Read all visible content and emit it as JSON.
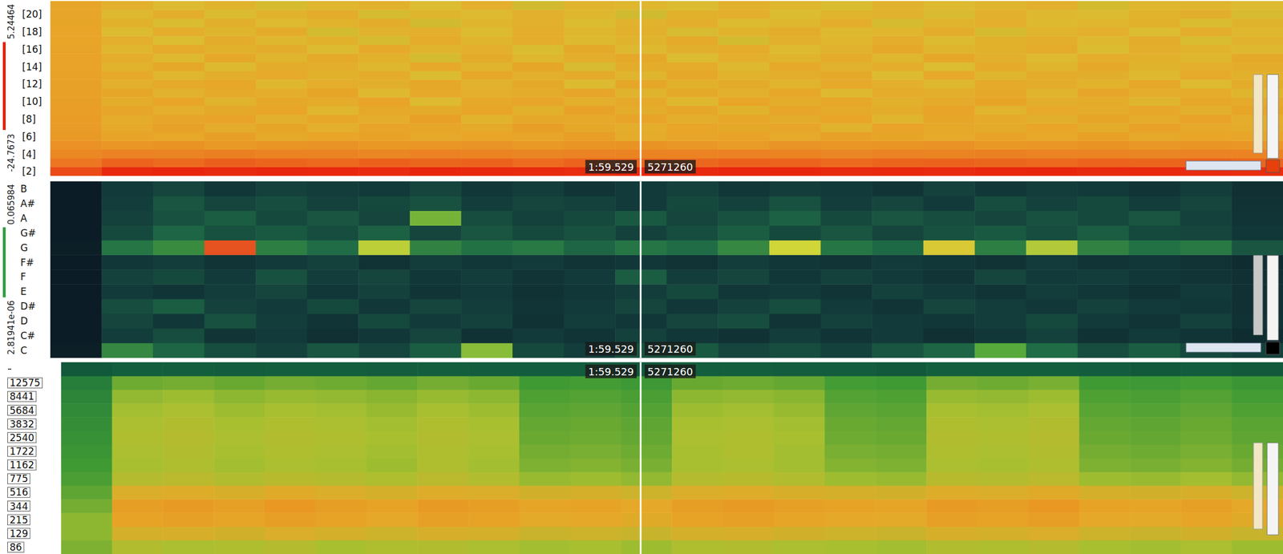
{
  "chart_data": [
    {
      "type": "heatmap",
      "y_categories": [
        "[2]",
        null,
        "[4]",
        null,
        "[6]",
        null,
        "[8]",
        null,
        "[10]",
        null,
        "[12]",
        null,
        "[14]",
        null,
        "[16]",
        null,
        "[18]",
        null,
        "[20]",
        null
      ],
      "color_range": [
        -24.7673,
        5.24464
      ],
      "color_ticks": [
        -24.7673,
        5.24464
      ],
      "annotations": [
        "1:59.529",
        "5271260"
      ],
      "tick_labels": "y",
      "cells": [
        [
          2.0,
          4.6,
          4.8,
          4.5,
          4.9,
          4.7,
          4.4,
          4.8,
          4.6,
          4.5,
          4.3,
          4.7,
          4.6,
          4.9,
          4.8,
          4.5,
          4.6,
          4.4,
          4.7,
          4.8,
          4.5,
          4.6,
          4.4,
          4.3
        ],
        [
          -1.5,
          0.2,
          -0.3,
          0.5,
          0.1,
          -0.2,
          0.4,
          0.0,
          0.3,
          -0.4,
          0.2,
          0.1,
          -0.1,
          0.4,
          0.2,
          -0.3,
          0.1,
          0.3,
          0.0,
          -0.2,
          0.2,
          0.1,
          0.3,
          0.0
        ],
        [
          -3.5,
          -2.8,
          -3.1,
          -2.6,
          -3.0,
          -2.9,
          -3.3,
          -2.7,
          -3.0,
          -3.2,
          -2.8,
          -3.1,
          -2.9,
          -2.7,
          -3.0,
          -3.3,
          -2.8,
          -3.1,
          -2.6,
          -3.0,
          -2.9,
          -3.2,
          -2.8,
          -3.0
        ],
        [
          -4.5,
          -5.2,
          -4.8,
          -5.6,
          -5.0,
          -4.7,
          -5.4,
          -5.1,
          -4.9,
          -5.5,
          -5.0,
          -4.8,
          -5.3,
          -5.7,
          -4.9,
          -5.2,
          -5.0,
          -4.6,
          -5.4,
          -5.1,
          -4.8,
          -5.3,
          -5.0,
          -5.2
        ],
        [
          -5.5,
          -6.8,
          -7.5,
          -6.2,
          -8.1,
          -7.0,
          -6.5,
          -7.8,
          -6.9,
          -7.3,
          -6.1,
          -8.4,
          -7.2,
          -6.6,
          -7.9,
          -6.4,
          -7.1,
          -8.0,
          -6.7,
          -7.4,
          -6.3,
          -7.7,
          -6.9,
          -7.2
        ],
        [
          -5.8,
          -7.9,
          -6.4,
          -8.8,
          -7.1,
          -9.5,
          -6.8,
          -7.6,
          -8.3,
          -6.2,
          -7.7,
          -9.0,
          -6.9,
          -8.1,
          -7.3,
          -10.2,
          -6.6,
          -7.8,
          -8.6,
          -7.0,
          -9.1,
          -6.5,
          -7.9,
          -8.4
        ],
        [
          -6.0,
          -8.5,
          -7.2,
          -6.6,
          -9.8,
          -7.4,
          -8.9,
          -6.3,
          -10.5,
          -7.7,
          -8.0,
          -6.8,
          -9.3,
          -7.5,
          -8.7,
          -6.9,
          -11.0,
          -7.6,
          -8.2,
          -9.6,
          -7.1,
          -8.4,
          -6.7,
          -9.0
        ],
        [
          -6.1,
          -7.3,
          -9.4,
          -8.1,
          -6.9,
          -11.2,
          -7.8,
          -8.6,
          -7.0,
          -9.9,
          -6.5,
          -8.8,
          -7.6,
          -10.4,
          -7.2,
          -8.3,
          -9.1,
          -6.8,
          -10.8,
          -7.9,
          -8.5,
          -7.4,
          -9.7,
          -7.1
        ],
        [
          -6.2,
          -9.1,
          -7.0,
          -10.6,
          -7.8,
          -8.4,
          -6.6,
          -12.3,
          -8.0,
          -7.3,
          -9.5,
          -7.9,
          -11.4,
          -6.9,
          -8.8,
          -7.5,
          -10.1,
          -8.2,
          -7.1,
          -9.3,
          -8.6,
          -10.9,
          -7.7,
          -8.3
        ],
        [
          -6.3,
          -7.6,
          -10.2,
          -8.3,
          -9.0,
          -7.1,
          -11.8,
          -7.9,
          -9.4,
          -8.7,
          -7.2,
          -10.6,
          -8.1,
          -9.8,
          -7.4,
          -12.0,
          -8.5,
          -9.2,
          -7.8,
          -10.7,
          -7.3,
          -9.0,
          -8.4,
          -11.1
        ],
        [
          -6.4,
          -9.7,
          -8.2,
          -7.4,
          -11.5,
          -8.9,
          -9.6,
          -7.7,
          -10.3,
          -8.1,
          -12.6,
          -7.6,
          -9.9,
          -8.6,
          -10.8,
          -7.9,
          -9.4,
          -11.7,
          -8.3,
          -9.1,
          -10.5,
          -7.8,
          -12.2,
          -8.7
        ],
        [
          -6.5,
          -8.0,
          -11.3,
          -9.2,
          -7.9,
          -10.1,
          -8.4,
          -12.9,
          -7.5,
          -9.8,
          -8.6,
          -11.0,
          -7.7,
          -10.4,
          -9.3,
          -8.1,
          -12.4,
          -7.9,
          -10.9,
          -8.8,
          -9.6,
          -11.8,
          -8.2,
          -10.0
        ],
        [
          -6.6,
          -10.4,
          -7.8,
          -12.1,
          -8.7,
          -9.3,
          -11.6,
          -8.0,
          -10.8,
          -7.6,
          -13.2,
          -9.1,
          -8.5,
          -11.9,
          -7.9,
          -10.2,
          -9.0,
          -12.7,
          -8.3,
          -11.1,
          -7.7,
          -10.6,
          -9.4,
          -8.8
        ],
        [
          -6.7,
          -8.9,
          -12.0,
          -7.7,
          -10.9,
          -8.2,
          -9.9,
          -13.5,
          -8.6,
          -11.4,
          -9.2,
          -7.8,
          -12.8,
          -9.5,
          -10.7,
          -8.4,
          -11.6,
          -7.6,
          -9.8,
          -12.3,
          -8.9,
          -10.0,
          -11.5,
          -8.1
        ],
        [
          -6.8,
          -11.2,
          -8.3,
          -10.0,
          -9.1,
          -12.5,
          -7.9,
          -10.7,
          -9.4,
          -13.0,
          -8.1,
          -11.8,
          -9.6,
          -8.4,
          -12.2,
          -10.3,
          -7.7,
          -11.0,
          -9.9,
          -8.6,
          -12.9,
          -9.2,
          -10.4,
          -11.7
        ],
        [
          -6.9,
          -9.5,
          -12.7,
          -8.8,
          -11.6,
          -9.9,
          -13.4,
          -8.5,
          -10.9,
          -9.0,
          -12.1,
          -10.6,
          -8.2,
          -13.7,
          -9.7,
          -11.3,
          -8.9,
          -12.5,
          -10.1,
          -9.3,
          -11.9,
          -8.7,
          -13.1,
          -10.2
        ],
        [
          -7.0,
          -12.4,
          -9.0,
          -11.1,
          -8.6,
          -13.8,
          -10.2,
          -9.5,
          -12.6,
          -8.9,
          -11.4,
          -9.7,
          -13.3,
          -10.5,
          -8.8,
          -12.0,
          -11.2,
          -9.1,
          -13.6,
          -10.7,
          -9.4,
          -12.8,
          -8.9,
          -11.5
        ],
        [
          -7.1,
          -10.1,
          -13.1,
          -9.6,
          -12.2,
          -10.4,
          -8.7,
          -13.9,
          -11.0,
          -9.8,
          -12.9,
          -10.2,
          -9.3,
          -12.4,
          -11.6,
          -8.9,
          -13.5,
          -10.8,
          -9.5,
          -12.1,
          -11.3,
          -9.9,
          -13.0,
          -10.6
        ],
        [
          -7.2,
          -11.8,
          -9.3,
          -12.9,
          -10.5,
          -9.1,
          -13.6,
          -10.9,
          -12.3,
          -9.7,
          -11.5,
          -14.0,
          -10.1,
          -9.4,
          -12.7,
          -11.1,
          -10.3,
          -13.2,
          -9.8,
          -11.9,
          -12.5,
          -10.4,
          -9.6,
          -13.3
        ],
        [
          -7.3,
          -9.8,
          -12.5,
          -10.6,
          -13.4,
          -11.2,
          -10.0,
          -12.8,
          -9.5,
          -13.9,
          -10.8,
          -11.6,
          -12.9,
          -9.9,
          -11.4,
          -13.1,
          -10.2,
          -12.2,
          -11.0,
          -9.7,
          -13.7,
          -11.5,
          -10.9,
          -12.4
        ]
      ]
    },
    {
      "type": "heatmap",
      "y_categories": [
        "C",
        "C#",
        "D",
        "D#",
        "E",
        "F",
        "F#",
        "G",
        "G#",
        "A",
        "A#",
        "B"
      ],
      "color_range": [
        2.81941e-06,
        0.065984
      ],
      "color_ticks": [
        {
          "value": 2.81941e-06,
          "label": "2.81941e-06"
        },
        0.065984
      ],
      "annotations": [
        "1:59.529",
        "5271260"
      ],
      "tick_labels": "y",
      "cells": [
        [
          0.002,
          0.032,
          0.024,
          0.018,
          0.015,
          0.02,
          0.016,
          0.022,
          0.045,
          0.017,
          0.014,
          0.019,
          0.021,
          0.016,
          0.018,
          0.015,
          0.02,
          0.024,
          0.04,
          0.026,
          0.018,
          0.022,
          0.017,
          0.015
        ],
        [
          0.001,
          0.014,
          0.018,
          0.011,
          0.013,
          0.009,
          0.012,
          0.016,
          0.01,
          0.013,
          0.011,
          0.015,
          0.012,
          0.01,
          0.014,
          0.011,
          0.013,
          0.009,
          0.012,
          0.015,
          0.01,
          0.013,
          0.011,
          0.008
        ],
        [
          0.001,
          0.016,
          0.012,
          0.019,
          0.014,
          0.011,
          0.017,
          0.013,
          0.015,
          0.01,
          0.014,
          0.012,
          0.016,
          0.018,
          0.011,
          0.015,
          0.013,
          0.012,
          0.014,
          0.017,
          0.013,
          0.011,
          0.015,
          0.01
        ],
        [
          0.001,
          0.018,
          0.022,
          0.015,
          0.013,
          0.017,
          0.012,
          0.016,
          0.014,
          0.011,
          0.013,
          0.016,
          0.012,
          0.015,
          0.018,
          0.013,
          0.011,
          0.016,
          0.014,
          0.012,
          0.015,
          0.013,
          0.012,
          0.009
        ],
        [
          0.001,
          0.013,
          0.011,
          0.014,
          0.016,
          0.012,
          0.015,
          0.011,
          0.013,
          0.01,
          0.012,
          0.014,
          0.017,
          0.012,
          0.013,
          0.011,
          0.015,
          0.013,
          0.011,
          0.014,
          0.012,
          0.01,
          0.013,
          0.009
        ],
        [
          0.001,
          0.015,
          0.017,
          0.013,
          0.019,
          0.014,
          0.016,
          0.012,
          0.014,
          0.011,
          0.013,
          0.022,
          0.014,
          0.016,
          0.012,
          0.015,
          0.013,
          0.011,
          0.016,
          0.013,
          0.014,
          0.012,
          0.011,
          0.009
        ],
        [
          0.001,
          0.012,
          0.014,
          0.011,
          0.013,
          0.015,
          0.01,
          0.014,
          0.012,
          0.013,
          0.011,
          0.012,
          0.01,
          0.014,
          0.012,
          0.011,
          0.013,
          0.012,
          0.01,
          0.013,
          0.011,
          0.012,
          0.01,
          0.008
        ],
        [
          0.002,
          0.028,
          0.033,
          0.064,
          0.03,
          0.026,
          0.05,
          0.031,
          0.027,
          0.029,
          0.024,
          0.028,
          0.026,
          0.032,
          0.052,
          0.028,
          0.025,
          0.054,
          0.03,
          0.049,
          0.031,
          0.027,
          0.029,
          0.02
        ],
        [
          0.001,
          0.017,
          0.024,
          0.019,
          0.021,
          0.018,
          0.023,
          0.016,
          0.02,
          0.017,
          0.019,
          0.015,
          0.018,
          0.022,
          0.017,
          0.02,
          0.016,
          0.019,
          0.021,
          0.018,
          0.022,
          0.017,
          0.016,
          0.012
        ],
        [
          0.001,
          0.015,
          0.019,
          0.022,
          0.017,
          0.02,
          0.016,
          0.043,
          0.018,
          0.015,
          0.017,
          0.021,
          0.016,
          0.019,
          0.023,
          0.017,
          0.02,
          0.018,
          0.016,
          0.019,
          0.017,
          0.02,
          0.015,
          0.011
        ],
        [
          0.001,
          0.014,
          0.02,
          0.016,
          0.018,
          0.015,
          0.017,
          0.019,
          0.014,
          0.016,
          0.015,
          0.013,
          0.017,
          0.015,
          0.019,
          0.014,
          0.016,
          0.013,
          0.018,
          0.015,
          0.017,
          0.014,
          0.016,
          0.01
        ],
        [
          0.001,
          0.013,
          0.016,
          0.012,
          0.015,
          0.014,
          0.013,
          0.016,
          0.012,
          0.014,
          0.011,
          0.013,
          0.015,
          0.012,
          0.014,
          0.013,
          0.011,
          0.015,
          0.012,
          0.014,
          0.013,
          0.011,
          0.014,
          0.009
        ]
      ]
    },
    {
      "type": "heatmap",
      "y_categories": [
        "86",
        "129",
        "215",
        "344",
        "516",
        "775",
        "1162",
        "1722",
        "2540",
        "3832",
        "5684",
        "8441",
        "12575",
        null
      ],
      "color_range": [
        0,
        100
      ],
      "annotations": [
        "1:59.529",
        "5271260"
      ],
      "tick_labels": "y",
      "cells": [
        [
          52,
          63,
          61,
          62,
          64,
          60,
          62,
          63,
          61,
          59,
          60,
          58,
          62,
          63,
          61,
          60,
          59,
          63,
          62,
          64,
          60,
          59,
          61,
          58
        ],
        [
          55,
          74,
          75,
          73,
          76,
          74,
          72,
          75,
          74,
          71,
          72,
          70,
          74,
          75,
          73,
          72,
          71,
          75,
          74,
          76,
          72,
          71,
          73,
          70
        ],
        [
          55,
          82,
          83,
          81,
          84,
          82,
          80,
          83,
          82,
          79,
          80,
          78,
          82,
          83,
          81,
          80,
          79,
          83,
          82,
          84,
          80,
          79,
          81,
          78
        ],
        [
          50,
          84,
          85,
          83,
          86,
          84,
          82,
          85,
          84,
          81,
          82,
          80,
          84,
          85,
          83,
          82,
          81,
          85,
          84,
          86,
          82,
          81,
          83,
          80
        ],
        [
          46,
          76,
          77,
          75,
          78,
          76,
          74,
          77,
          76,
          73,
          74,
          72,
          76,
          77,
          75,
          74,
          73,
          77,
          76,
          78,
          74,
          73,
          75,
          72
        ],
        [
          42,
          64,
          66,
          63,
          65,
          64,
          62,
          66,
          63,
          57,
          58,
          56,
          64,
          65,
          63,
          58,
          57,
          65,
          64,
          66,
          58,
          57,
          59,
          56
        ],
        [
          40,
          60,
          62,
          59,
          61,
          60,
          58,
          62,
          59,
          52,
          53,
          51,
          60,
          61,
          59,
          53,
          52,
          61,
          60,
          62,
          52,
          51,
          53,
          50
        ],
        [
          38,
          61,
          63,
          60,
          62,
          61,
          59,
          62,
          60,
          50,
          51,
          49,
          60,
          62,
          59,
          51,
          50,
          62,
          61,
          63,
          50,
          49,
          51,
          48
        ],
        [
          36,
          62,
          64,
          61,
          63,
          62,
          60,
          63,
          61,
          48,
          49,
          47,
          61,
          62,
          60,
          49,
          48,
          63,
          62,
          64,
          48,
          47,
          49,
          46
        ],
        [
          35,
          61,
          63,
          60,
          62,
          61,
          59,
          62,
          60,
          47,
          48,
          46,
          60,
          61,
          59,
          48,
          47,
          62,
          61,
          63,
          47,
          46,
          48,
          45
        ],
        [
          33,
          59,
          61,
          58,
          60,
          59,
          57,
          60,
          58,
          45,
          46,
          44,
          58,
          59,
          57,
          46,
          45,
          60,
          59,
          61,
          45,
          44,
          46,
          43
        ],
        [
          31,
          56,
          58,
          55,
          57,
          56,
          54,
          57,
          55,
          43,
          44,
          42,
          55,
          56,
          54,
          44,
          43,
          57,
          56,
          58,
          43,
          42,
          44,
          41
        ],
        [
          28,
          49,
          50,
          48,
          50,
          49,
          47,
          50,
          48,
          40,
          41,
          39,
          48,
          49,
          47,
          41,
          40,
          50,
          49,
          51,
          40,
          39,
          41,
          38
        ],
        [
          12,
          14,
          14,
          13,
          14,
          14,
          13,
          14,
          13,
          13,
          13,
          12,
          14,
          14,
          13,
          13,
          12,
          14,
          14,
          14,
          13,
          12,
          13,
          12
        ]
      ]
    }
  ]
}
